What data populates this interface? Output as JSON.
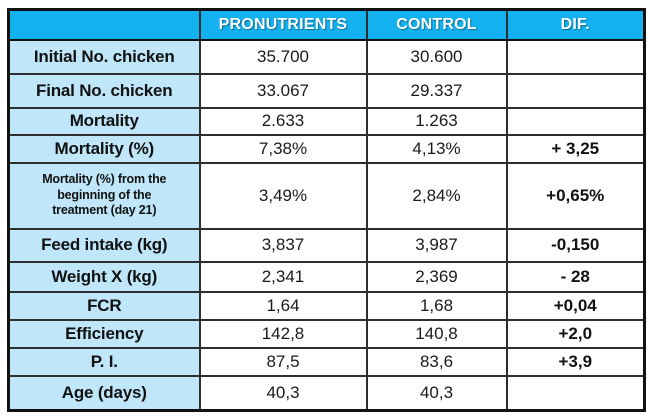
{
  "colors": {
    "header_bg": "#14b1f0",
    "label_column_bg": "#bfe7f9",
    "data_cell_bg": "#ffffff",
    "border": "#2e2e2e",
    "header_text": "#ffffff",
    "body_text": "#1a1a1a"
  },
  "chart_data": {
    "type": "table",
    "columns": [
      "",
      "PRONUTRIENTS",
      "CONTROL",
      "DIF."
    ],
    "rows": [
      {
        "label": "Initial No. chicken",
        "pronutrients": "35.700",
        "control": "30.600",
        "dif": ""
      },
      {
        "label": "Final No. chicken",
        "pronutrients": "33.067",
        "control": "29.337",
        "dif": ""
      },
      {
        "label": "Mortality",
        "pronutrients": "2.633",
        "control": "1.263",
        "dif": ""
      },
      {
        "label": "Mortality (%)",
        "pronutrients": "7,38%",
        "control": "4,13%",
        "dif": "+ 3,25"
      },
      {
        "label": "Mortality (%) from the\nbeginning of the\ntreatment (day 21)",
        "pronutrients": "3,49%",
        "control": "2,84%",
        "dif": "+0,65%"
      },
      {
        "label": "Feed intake (kg)",
        "pronutrients": "3,837",
        "control": "3,987",
        "dif": "-0,150"
      },
      {
        "label": "Weight X (kg)",
        "pronutrients": "2,341",
        "control": "2,369",
        "dif": "- 28"
      },
      {
        "label": "FCR",
        "pronutrients": "1,64",
        "control": "1,68",
        "dif": "+0,04"
      },
      {
        "label": "Efficiency",
        "pronutrients": "142,8",
        "control": "140,8",
        "dif": "+2,0"
      },
      {
        "label": "P. I.",
        "pronutrients": "87,5",
        "control": "83,6",
        "dif": "+3,9"
      },
      {
        "label": "Age (days)",
        "pronutrients": "40,3",
        "control": "40,3",
        "dif": ""
      }
    ]
  }
}
